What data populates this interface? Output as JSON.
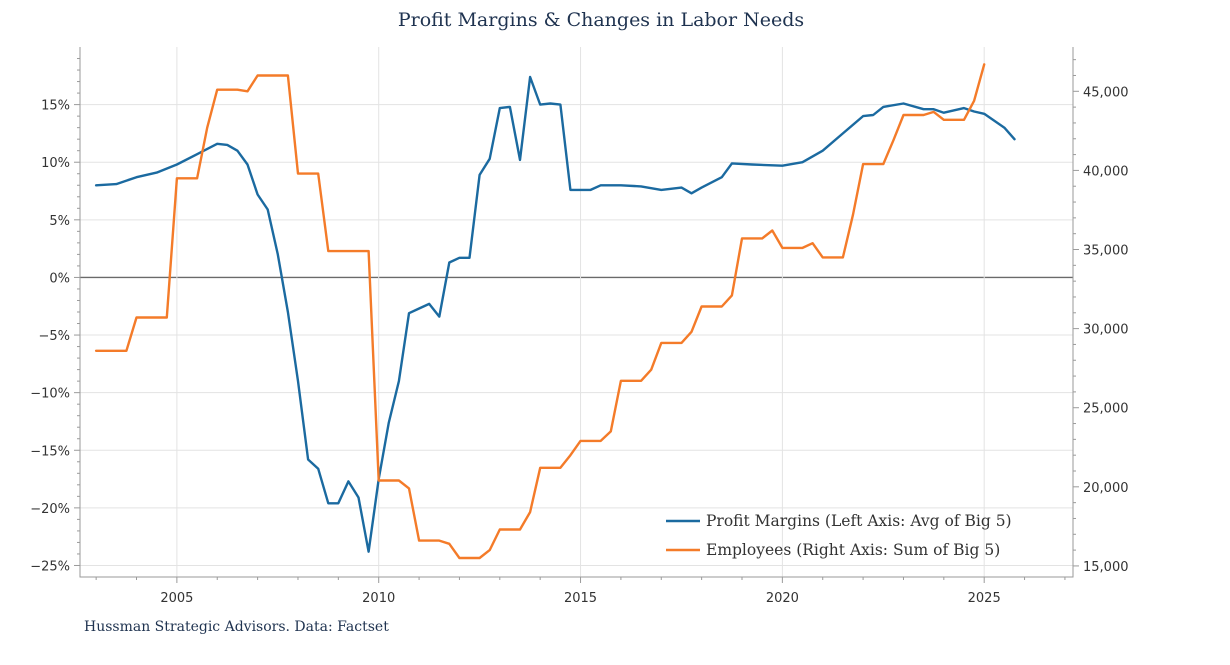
{
  "colors": {
    "profit": "#1b6aa0",
    "employees": "#f47b29",
    "title": "#1f3350"
  },
  "chart_data": {
    "type": "line",
    "title": "Profit Margins & Changes in Labor Needs",
    "source": "Hussman Strategic Advisors. Data: Factset",
    "xlim": [
      2002.6,
      2027.2
    ],
    "ylim_left": [
      -26,
      20
    ],
    "ylim_right": [
      14300,
      47800
    ],
    "x_ticks": [
      {
        "value": 2005,
        "label": "2005"
      },
      {
        "value": 2010,
        "label": "2010"
      },
      {
        "value": 2015,
        "label": "2015"
      },
      {
        "value": 2020,
        "label": "2020"
      },
      {
        "value": 2025,
        "label": "2025"
      }
    ],
    "y_left_ticks": [
      {
        "value": 15,
        "label": "15%"
      },
      {
        "value": 10,
        "label": "10%"
      },
      {
        "value": 5,
        "label": "5%"
      },
      {
        "value": 0,
        "label": "0%"
      },
      {
        "value": -5,
        "label": "−5%"
      },
      {
        "value": -10,
        "label": "−10%"
      },
      {
        "value": -15,
        "label": "−15%"
      },
      {
        "value": -20,
        "label": "−20%"
      },
      {
        "value": -25,
        "label": "−25%"
      }
    ],
    "y_right_ticks": [
      {
        "value": 45000,
        "label": "45,000"
      },
      {
        "value": 40000,
        "label": "40,000"
      },
      {
        "value": 35000,
        "label": "35,000"
      },
      {
        "value": 30000,
        "label": "30,000"
      },
      {
        "value": 25000,
        "label": "25,000"
      },
      {
        "value": 20000,
        "label": "20,000"
      },
      {
        "value": 15000,
        "label": "15,000"
      }
    ],
    "legend_position": "bottom-right",
    "series": [
      {
        "name": "Profit Margins (Left Axis: Avg of Big 5)",
        "axis": "left",
        "color": "#1b6aa0",
        "points": [
          [
            2003.0,
            8.0
          ],
          [
            2003.5,
            8.1
          ],
          [
            2004.0,
            8.7
          ],
          [
            2004.5,
            9.1
          ],
          [
            2005.0,
            9.8
          ],
          [
            2005.5,
            10.7
          ],
          [
            2006.0,
            11.6
          ],
          [
            2006.25,
            11.5
          ],
          [
            2006.5,
            11.0
          ],
          [
            2006.75,
            9.8
          ],
          [
            2007.0,
            7.2
          ],
          [
            2007.25,
            5.9
          ],
          [
            2007.5,
            2.0
          ],
          [
            2007.75,
            -3.0
          ],
          [
            2008.0,
            -9.0
          ],
          [
            2008.25,
            -15.8
          ],
          [
            2008.5,
            -16.6
          ],
          [
            2008.75,
            -19.6
          ],
          [
            2009.0,
            -19.6
          ],
          [
            2009.25,
            -17.7
          ],
          [
            2009.5,
            -19.1
          ],
          [
            2009.75,
            -23.8
          ],
          [
            2010.0,
            -17.5
          ],
          [
            2010.25,
            -12.6
          ],
          [
            2010.5,
            -9.0
          ],
          [
            2010.75,
            -3.1
          ],
          [
            2011.0,
            -2.7
          ],
          [
            2011.25,
            -2.3
          ],
          [
            2011.5,
            -3.4
          ],
          [
            2011.75,
            1.3
          ],
          [
            2012.0,
            1.7
          ],
          [
            2012.25,
            1.7
          ],
          [
            2012.5,
            8.9
          ],
          [
            2012.75,
            10.3
          ],
          [
            2013.0,
            14.7
          ],
          [
            2013.25,
            14.8
          ],
          [
            2013.5,
            10.2
          ],
          [
            2013.75,
            17.4
          ],
          [
            2014.0,
            15.0
          ],
          [
            2014.25,
            15.1
          ],
          [
            2014.5,
            15.0
          ],
          [
            2014.75,
            7.6
          ],
          [
            2015.0,
            7.6
          ],
          [
            2015.25,
            7.6
          ],
          [
            2015.5,
            8.0
          ],
          [
            2016.0,
            8.0
          ],
          [
            2016.5,
            7.9
          ],
          [
            2017.0,
            7.6
          ],
          [
            2017.5,
            7.8
          ],
          [
            2017.75,
            7.3
          ],
          [
            2018.0,
            7.8
          ],
          [
            2018.5,
            8.7
          ],
          [
            2018.75,
            9.9
          ],
          [
            2019.25,
            9.8
          ],
          [
            2020.0,
            9.7
          ],
          [
            2020.5,
            10.0
          ],
          [
            2021.0,
            11.0
          ],
          [
            2021.5,
            12.5
          ],
          [
            2022.0,
            14.0
          ],
          [
            2022.25,
            14.1
          ],
          [
            2022.5,
            14.8
          ],
          [
            2023.0,
            15.1
          ],
          [
            2023.5,
            14.6
          ],
          [
            2023.75,
            14.6
          ],
          [
            2024.0,
            14.3
          ],
          [
            2024.5,
            14.7
          ],
          [
            2024.75,
            14.4
          ],
          [
            2025.0,
            14.2
          ],
          [
            2025.5,
            13.0
          ],
          [
            2025.75,
            12.0
          ]
        ]
      },
      {
        "name": "Employees (Right Axis: Sum of Big 5)",
        "axis": "right",
        "color": "#f47b29",
        "points": [
          [
            2003.0,
            28600
          ],
          [
            2003.75,
            28600
          ],
          [
            2004.0,
            30700
          ],
          [
            2004.75,
            30700
          ],
          [
            2005.0,
            39500
          ],
          [
            2005.5,
            39500
          ],
          [
            2005.75,
            42700
          ],
          [
            2006.0,
            45100
          ],
          [
            2006.5,
            45100
          ],
          [
            2006.75,
            45000
          ],
          [
            2007.0,
            46000
          ],
          [
            2007.75,
            46000
          ],
          [
            2008.0,
            39800
          ],
          [
            2008.5,
            39800
          ],
          [
            2008.75,
            34900
          ],
          [
            2009.75,
            34900
          ],
          [
            2010.0,
            20400
          ],
          [
            2010.5,
            20400
          ],
          [
            2010.75,
            19900
          ],
          [
            2011.0,
            16600
          ],
          [
            2011.5,
            16600
          ],
          [
            2011.75,
            16400
          ],
          [
            2012.0,
            15500
          ],
          [
            2012.5,
            15500
          ],
          [
            2012.75,
            16000
          ],
          [
            2013.0,
            17300
          ],
          [
            2013.5,
            17300
          ],
          [
            2013.75,
            18400
          ],
          [
            2014.0,
            21200
          ],
          [
            2014.5,
            21200
          ],
          [
            2014.75,
            22000
          ],
          [
            2015.0,
            22900
          ],
          [
            2015.5,
            22900
          ],
          [
            2015.75,
            23500
          ],
          [
            2016.0,
            26700
          ],
          [
            2016.5,
            26700
          ],
          [
            2016.75,
            27400
          ],
          [
            2017.0,
            29100
          ],
          [
            2017.5,
            29100
          ],
          [
            2017.75,
            29800
          ],
          [
            2018.0,
            31400
          ],
          [
            2018.5,
            31400
          ],
          [
            2018.75,
            32100
          ],
          [
            2019.0,
            35700
          ],
          [
            2019.5,
            35700
          ],
          [
            2019.75,
            36200
          ],
          [
            2020.0,
            35100
          ],
          [
            2020.5,
            35100
          ],
          [
            2020.75,
            35400
          ],
          [
            2021.0,
            34500
          ],
          [
            2021.5,
            34500
          ],
          [
            2021.75,
            37200
          ],
          [
            2022.0,
            40400
          ],
          [
            2022.5,
            40400
          ],
          [
            2022.75,
            41900
          ],
          [
            2023.0,
            43500
          ],
          [
            2023.5,
            43500
          ],
          [
            2023.75,
            43700
          ],
          [
            2024.0,
            43200
          ],
          [
            2024.5,
            43200
          ],
          [
            2024.75,
            44400
          ],
          [
            2025.0,
            46700
          ]
        ]
      }
    ]
  }
}
